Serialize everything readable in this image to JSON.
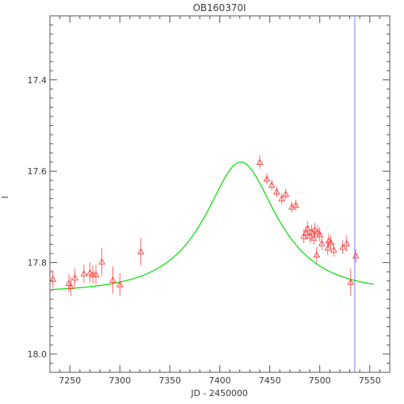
{
  "chart_data": {
    "type": "scatter",
    "title": "OB160370I",
    "xlabel": "JD - 2450000",
    "ylabel": "I",
    "xlim": [
      7230,
      7570
    ],
    "ylim": [
      18.04,
      17.26
    ],
    "y_inverted": true,
    "grid": false,
    "x_ticks": [
      "7250",
      "7300",
      "7350",
      "7400",
      "7450",
      "7500",
      "7550"
    ],
    "y_ticks": [
      "17.4",
      "17.6",
      "17.8",
      "18.0"
    ],
    "colors": {
      "points": "#ff4040",
      "model": "#00dd00",
      "marker_line": "#8080ff",
      "axes": "#555555"
    },
    "series": [
      {
        "values": [
          {
            "x": 7233,
            "y": 17.836,
            "err": 0.02
          },
          {
            "x": 7249,
            "y": 17.845,
            "err": 0.02
          },
          {
            "x": 7251,
            "y": 17.852,
            "err": 0.02
          },
          {
            "x": 7255,
            "y": 17.833,
            "err": 0.02
          },
          {
            "x": 7264,
            "y": 17.824,
            "err": 0.02
          },
          {
            "x": 7270,
            "y": 17.822,
            "err": 0.022
          },
          {
            "x": 7273,
            "y": 17.826,
            "err": 0.02
          },
          {
            "x": 7276,
            "y": 17.826,
            "err": 0.022
          },
          {
            "x": 7282,
            "y": 17.798,
            "err": 0.03
          },
          {
            "x": 7293,
            "y": 17.838,
            "err": 0.03
          },
          {
            "x": 7300,
            "y": 17.848,
            "err": 0.025
          },
          {
            "x": 7321,
            "y": 17.776,
            "err": 0.03
          },
          {
            "x": 7440,
            "y": 17.58,
            "err": 0.015
          },
          {
            "x": 7447,
            "y": 17.617,
            "err": 0.012
          },
          {
            "x": 7452,
            "y": 17.63,
            "err": 0.012
          },
          {
            "x": 7457,
            "y": 17.645,
            "err": 0.012
          },
          {
            "x": 7462,
            "y": 17.66,
            "err": 0.012
          },
          {
            "x": 7466,
            "y": 17.65,
            "err": 0.012
          },
          {
            "x": 7472,
            "y": 17.678,
            "err": 0.012
          },
          {
            "x": 7476,
            "y": 17.674,
            "err": 0.012
          },
          {
            "x": 7484,
            "y": 17.742,
            "err": 0.015
          },
          {
            "x": 7486,
            "y": 17.735,
            "err": 0.015
          },
          {
            "x": 7488,
            "y": 17.725,
            "err": 0.015
          },
          {
            "x": 7490,
            "y": 17.742,
            "err": 0.015
          },
          {
            "x": 7492,
            "y": 17.732,
            "err": 0.015
          },
          {
            "x": 7494,
            "y": 17.746,
            "err": 0.015
          },
          {
            "x": 7495,
            "y": 17.728,
            "err": 0.015
          },
          {
            "x": 7497,
            "y": 17.783,
            "err": 0.018
          },
          {
            "x": 7498,
            "y": 17.733,
            "err": 0.015
          },
          {
            "x": 7500,
            "y": 17.738,
            "err": 0.015
          },
          {
            "x": 7502,
            "y": 17.758,
            "err": 0.015
          },
          {
            "x": 7508,
            "y": 17.768,
            "err": 0.015
          },
          {
            "x": 7509,
            "y": 17.752,
            "err": 0.015
          },
          {
            "x": 7511,
            "y": 17.756,
            "err": 0.015
          },
          {
            "x": 7514,
            "y": 17.772,
            "err": 0.015
          },
          {
            "x": 7523,
            "y": 17.766,
            "err": 0.015
          },
          {
            "x": 7527,
            "y": 17.758,
            "err": 0.018
          },
          {
            "x": 7531,
            "y": 17.843,
            "err": 0.03
          },
          {
            "x": 7536,
            "y": 17.785,
            "err": 0.015
          }
        ]
      }
    ],
    "model": {
      "type": "line",
      "t0": 7421,
      "peak_I": 17.58,
      "baseline_I": 17.865,
      "tE": 70,
      "u0": 0.55,
      "x_range": [
        7232,
        7554
      ]
    },
    "vertical_line_x": 7535
  }
}
